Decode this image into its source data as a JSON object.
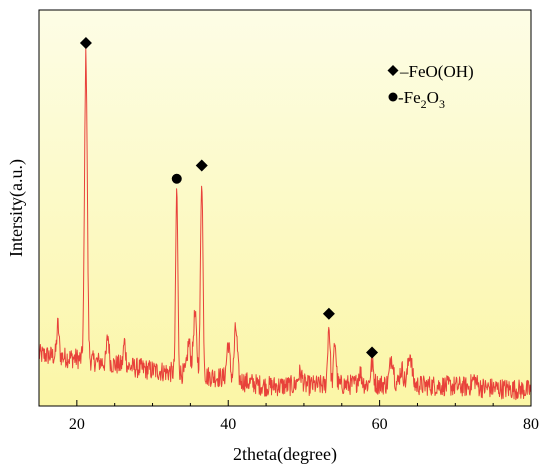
{
  "chart_data": {
    "type": "line",
    "title": "",
    "xlabel": "2theta(degree)",
    "ylabel": "Intersity(a.u.)",
    "xlim": [
      15,
      80
    ],
    "ylim": [
      0,
      100
    ],
    "x_ticks": [
      20,
      40,
      60,
      80
    ],
    "y_ticks": [],
    "grid": false,
    "background_gradient": [
      "#fdfde6",
      "#fbf6a6"
    ],
    "line_color": "#e8413a",
    "marker_color": "#000000",
    "legend": {
      "placement": "top-right",
      "entries": [
        {
          "symbol": "diamond",
          "text": "–FeO(OH)"
        },
        {
          "symbol": "circle",
          "text_main": "-Fe",
          "sub1": "2",
          "mid": "O",
          "sub2": "3"
        }
      ]
    },
    "baseline": 7.5,
    "peaks": [
      {
        "x": 17.5,
        "height": 8,
        "width": 0.15
      },
      {
        "x": 21.2,
        "height": 77,
        "width": 0.18,
        "marker": "diamond"
      },
      {
        "x": 24.1,
        "height": 7,
        "width": 0.15
      },
      {
        "x": 26.3,
        "height": 6,
        "width": 0.15
      },
      {
        "x": 33.2,
        "height": 46,
        "width": 0.14,
        "marker": "circle"
      },
      {
        "x": 34.8,
        "height": 8,
        "width": 0.2
      },
      {
        "x": 35.6,
        "height": 15,
        "width": 0.22
      },
      {
        "x": 36.5,
        "height": 50,
        "width": 0.16,
        "marker": "diamond"
      },
      {
        "x": 40.0,
        "height": 9,
        "width": 0.2
      },
      {
        "x": 41.0,
        "height": 13,
        "width": 0.2
      },
      {
        "x": 49.5,
        "height": 3,
        "width": 0.3
      },
      {
        "x": 53.3,
        "height": 15,
        "width": 0.16,
        "marker": "diamond"
      },
      {
        "x": 54.1,
        "height": 11,
        "width": 0.16
      },
      {
        "x": 57.4,
        "height": 3,
        "width": 0.25
      },
      {
        "x": 59.0,
        "height": 5,
        "width": 0.2,
        "marker": "diamond"
      },
      {
        "x": 61.6,
        "height": 7,
        "width": 0.25
      },
      {
        "x": 62.9,
        "height": 4,
        "width": 0.25
      },
      {
        "x": 64.0,
        "height": 8,
        "width": 0.25
      },
      {
        "x": 72.5,
        "height": 2,
        "width": 0.3
      }
    ],
    "noise_amplitude": 2.6,
    "baseline_trend": [
      [
        15,
        13
      ],
      [
        20,
        12
      ],
      [
        30,
        9
      ],
      [
        40,
        7
      ],
      [
        45,
        5
      ],
      [
        60,
        5.5
      ],
      [
        70,
        5
      ],
      [
        80,
        4
      ]
    ]
  }
}
